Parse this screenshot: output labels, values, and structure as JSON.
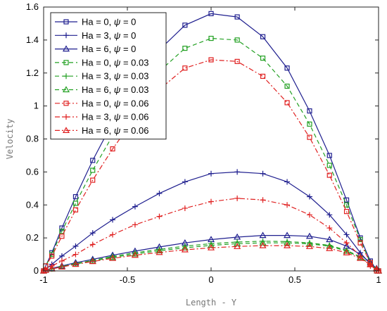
{
  "chart_data": {
    "type": "line",
    "xlabel": "Length - Y",
    "ylabel": "Velocity",
    "xlim": [
      -1,
      1
    ],
    "ylim": [
      0,
      1.6
    ],
    "x_ticks": [
      -1,
      -0.5,
      0,
      0.5,
      1
    ],
    "y_ticks": [
      0,
      0.2,
      0.4,
      0.6,
      0.8,
      1,
      1.2,
      1.4,
      1.6
    ],
    "x_tick_labels": [
      "-1",
      "-0.5",
      "0",
      "0.5",
      "1"
    ],
    "y_tick_labels": [
      "0",
      "0.2",
      "0.4",
      "0.6",
      "0.8",
      "1",
      "1.2",
      "1.4",
      "1.6"
    ],
    "grid": false,
    "legend_position": "top-left",
    "x": [
      -1.0,
      -0.988,
      -0.951,
      -0.891,
      -0.809,
      -0.707,
      -0.588,
      -0.454,
      -0.309,
      -0.156,
      0.0,
      0.156,
      0.309,
      0.454,
      0.588,
      0.707,
      0.809,
      0.891,
      0.951,
      0.988,
      1.0
    ],
    "series": [
      {
        "name": "Ha = 0, ψ = 0",
        "legend_prefix": "Ha = 0, ",
        "legend_psi": "ψ",
        "legend_suffix": " = 0",
        "color": "#1f1f8f",
        "dash": "solid",
        "marker": "square",
        "values": [
          0.0,
          0.03,
          0.11,
          0.26,
          0.45,
          0.67,
          0.9,
          1.13,
          1.34,
          1.49,
          1.56,
          1.54,
          1.42,
          1.23,
          0.97,
          0.7,
          0.43,
          0.2,
          0.06,
          0.0,
          0.0
        ]
      },
      {
        "name": "Ha = 3, ψ = 0",
        "legend_prefix": "Ha = 3, ",
        "legend_psi": "ψ",
        "legend_suffix": " = 0",
        "color": "#1f1f8f",
        "dash": "solid",
        "marker": "plus",
        "values": [
          0.0,
          0.01,
          0.04,
          0.09,
          0.15,
          0.23,
          0.31,
          0.39,
          0.47,
          0.54,
          0.59,
          0.6,
          0.59,
          0.54,
          0.45,
          0.34,
          0.22,
          0.11,
          0.04,
          0.01,
          0.0
        ]
      },
      {
        "name": "Ha = 6, ψ = 0",
        "legend_prefix": "Ha = 6, ",
        "legend_psi": "ψ",
        "legend_suffix": " = 0",
        "color": "#1f1f8f",
        "dash": "solid",
        "marker": "triangle",
        "values": [
          0.0,
          0.005,
          0.015,
          0.03,
          0.05,
          0.07,
          0.095,
          0.12,
          0.145,
          0.17,
          0.19,
          0.205,
          0.215,
          0.215,
          0.21,
          0.19,
          0.15,
          0.1,
          0.05,
          0.015,
          0.0
        ]
      },
      {
        "name": "Ha = 0, ψ = 0.03",
        "legend_prefix": "Ha = 0, ",
        "legend_psi": "ψ",
        "legend_suffix": " = 0.03",
        "color": "#22a022",
        "dash": "dashed",
        "marker": "square",
        "values": [
          0.0,
          0.03,
          0.1,
          0.24,
          0.41,
          0.61,
          0.82,
          1.03,
          1.21,
          1.35,
          1.41,
          1.4,
          1.29,
          1.12,
          0.89,
          0.64,
          0.4,
          0.19,
          0.05,
          0.0,
          0.0
        ]
      },
      {
        "name": "Ha = 3, ψ = 0.03",
        "legend_prefix": "Ha = 3, ",
        "legend_psi": "ψ",
        "legend_suffix": " = 0.03",
        "color": "#22a022",
        "dash": "dashed",
        "marker": "plus",
        "values": [
          0.0,
          0.004,
          0.012,
          0.027,
          0.044,
          0.064,
          0.088,
          0.11,
          0.13,
          0.15,
          0.165,
          0.175,
          0.18,
          0.178,
          0.17,
          0.155,
          0.125,
          0.085,
          0.04,
          0.012,
          0.0
        ]
      },
      {
        "name": "Ha = 6, ψ = 0.03",
        "legend_prefix": "Ha = 6, ",
        "legend_psi": "ψ",
        "legend_suffix": " = 0.03",
        "color": "#22a022",
        "dash": "dashed",
        "marker": "triangle",
        "values": [
          0.0,
          0.004,
          0.012,
          0.025,
          0.042,
          0.06,
          0.082,
          0.103,
          0.122,
          0.14,
          0.155,
          0.165,
          0.17,
          0.17,
          0.164,
          0.15,
          0.12,
          0.082,
          0.04,
          0.012,
          0.0
        ]
      },
      {
        "name": "Ha = 0, ψ = 0.06",
        "legend_prefix": "Ha = 0, ",
        "legend_psi": "ψ",
        "legend_suffix": " = 0.06",
        "color": "#e02020",
        "dash": "dashdot",
        "marker": "square",
        "values": [
          0.0,
          0.03,
          0.09,
          0.21,
          0.37,
          0.55,
          0.74,
          0.93,
          1.1,
          1.23,
          1.28,
          1.27,
          1.18,
          1.02,
          0.81,
          0.58,
          0.36,
          0.17,
          0.05,
          0.0,
          0.0
        ]
      },
      {
        "name": "Ha = 3, ψ = 0.06",
        "legend_prefix": "Ha = 3, ",
        "legend_psi": "ψ",
        "legend_suffix": " = 0.06",
        "color": "#e02020",
        "dash": "dashdot",
        "marker": "plus",
        "values": [
          0.0,
          0.01,
          0.03,
          0.06,
          0.1,
          0.16,
          0.22,
          0.28,
          0.33,
          0.38,
          0.42,
          0.44,
          0.43,
          0.4,
          0.34,
          0.26,
          0.17,
          0.09,
          0.03,
          0.01,
          0.0
        ]
      },
      {
        "name": "Ha = 6, ψ = 0.06",
        "legend_prefix": "Ha = 6, ",
        "legend_psi": "ψ",
        "legend_suffix": " = 0.06",
        "color": "#e02020",
        "dash": "dashdot",
        "marker": "triangle",
        "values": [
          0.0,
          0.004,
          0.012,
          0.024,
          0.04,
          0.057,
          0.076,
          0.095,
          0.112,
          0.128,
          0.14,
          0.148,
          0.153,
          0.153,
          0.148,
          0.136,
          0.11,
          0.076,
          0.038,
          0.012,
          0.0
        ]
      }
    ]
  }
}
